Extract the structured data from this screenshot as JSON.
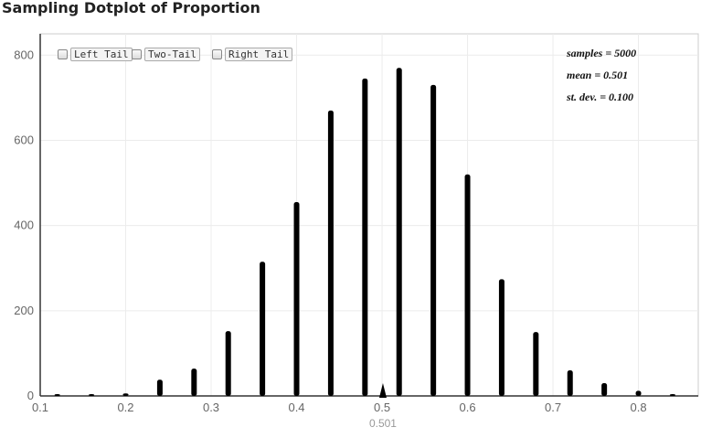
{
  "title": "Sampling Dotplot of Proportion",
  "tail_options": [
    {
      "label": "Left Tail"
    },
    {
      "label": "Two-Tail"
    },
    {
      "label": "Right Tail"
    }
  ],
  "stats": {
    "samples": "samples = 5000",
    "mean": "mean = 0.501",
    "sd": "st. dev. = 0.100"
  },
  "mean_marker_label": "0.501",
  "chart_data": {
    "type": "bar",
    "title": "Sampling Dotplot of Proportion",
    "xlabel": "",
    "ylabel": "",
    "xlim": [
      0.1,
      0.87
    ],
    "ylim": [
      0,
      850
    ],
    "xticks": [
      "0.1",
      "0.2",
      "0.3",
      "0.4",
      "0.5",
      "0.6",
      "0.7",
      "0.8"
    ],
    "yticks": [
      "0",
      "200",
      "400",
      "600",
      "800"
    ],
    "grid": true,
    "mean": 0.501,
    "x": [
      0.12,
      0.16,
      0.2,
      0.24,
      0.28,
      0.32,
      0.36,
      0.4,
      0.44,
      0.48,
      0.52,
      0.56,
      0.6,
      0.64,
      0.68,
      0.72,
      0.76,
      0.8,
      0.84
    ],
    "values": [
      2,
      1,
      6,
      38,
      64,
      152,
      315,
      455,
      670,
      745,
      770,
      730,
      520,
      274,
      150,
      60,
      30,
      12,
      2
    ]
  }
}
